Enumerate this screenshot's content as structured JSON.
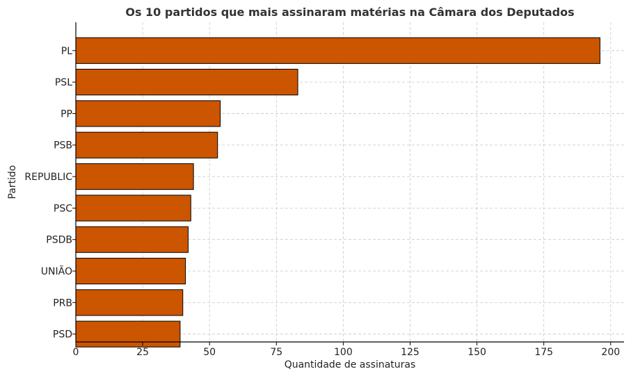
{
  "chart_data": {
    "type": "bar",
    "orientation": "horizontal",
    "title": "Os 10 partidos que mais assinaram matérias na Câmara dos Deputados",
    "xlabel": "Quantidade de assinaturas",
    "ylabel": "Partido",
    "categories": [
      "PL",
      "PSL",
      "PP",
      "PSB",
      "REPUBLIC",
      "PSC",
      "PSDB",
      "UNIÃO",
      "PRB",
      "PSD"
    ],
    "values": [
      196,
      83,
      54,
      53,
      44,
      43,
      42,
      41,
      40,
      39
    ],
    "xlim": [
      0,
      205
    ],
    "xticks": [
      0,
      25,
      50,
      75,
      100,
      125,
      150,
      175,
      200
    ],
    "grid": true,
    "bar_color": "#cc5500",
    "bar_edge_color": "#000000"
  }
}
